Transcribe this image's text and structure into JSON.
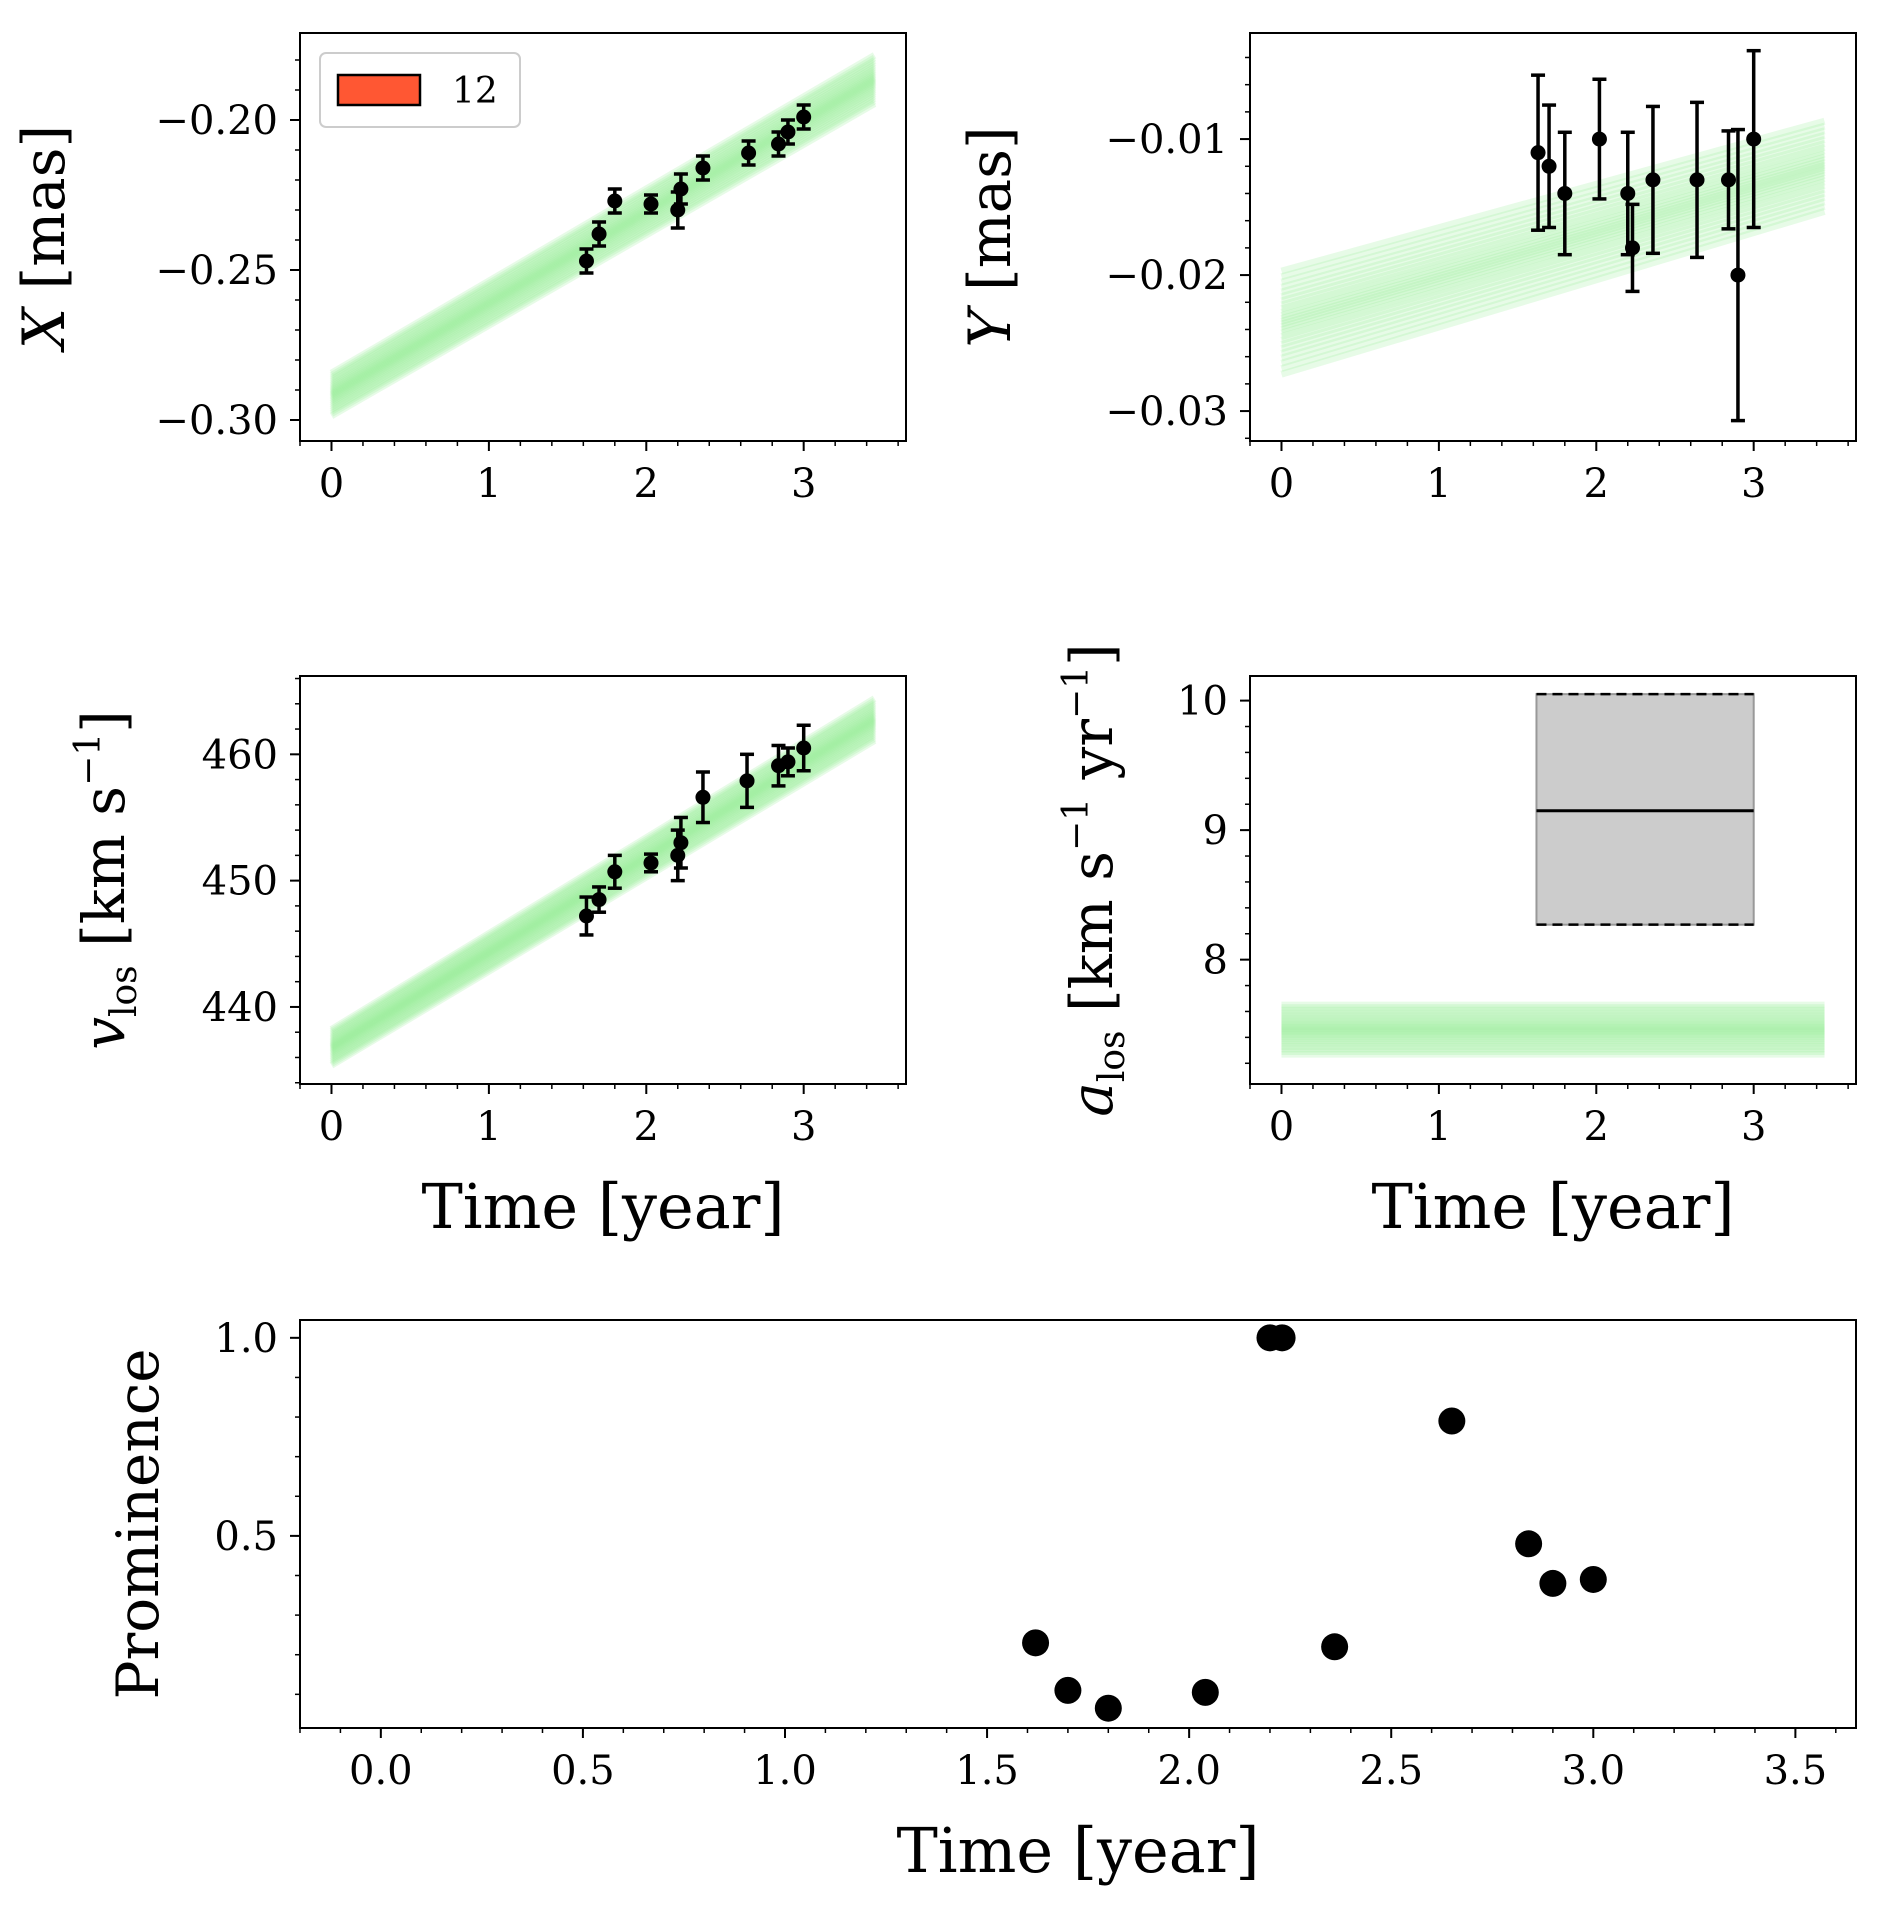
{
  "legend": {
    "label": "12",
    "color": "#ff5733"
  },
  "colors": {
    "model": "#90ee90",
    "data": "#000000",
    "box_fill": "#cccccc"
  },
  "chart_data": [
    {
      "id": "X",
      "type": "line",
      "ylabel_parts": [
        "X",
        " [mas]"
      ],
      "xlim": [
        -0.2,
        3.65
      ],
      "ylim": [
        -0.307,
        -0.171
      ],
      "xticks": [
        "0",
        "1",
        "2",
        "3"
      ],
      "xtick_values": [
        0,
        1,
        2,
        3
      ],
      "yticks": [
        "−0.30",
        "−0.25",
        "−0.20"
      ],
      "ytick_values": [
        -0.3,
        -0.25,
        -0.2
      ],
      "model_band": {
        "x_range": [
          0,
          3.45
        ],
        "y_start": [
          -0.299,
          -0.284
        ],
        "y_end": [
          -0.195,
          -0.178
        ]
      },
      "points": [
        {
          "x": 1.62,
          "y": -0.247,
          "err": 0.004
        },
        {
          "x": 1.7,
          "y": -0.238,
          "err": 0.004
        },
        {
          "x": 1.8,
          "y": -0.227,
          "err": 0.004
        },
        {
          "x": 2.03,
          "y": -0.228,
          "err": 0.003
        },
        {
          "x": 2.2,
          "y": -0.23,
          "err": 0.006
        },
        {
          "x": 2.22,
          "y": -0.223,
          "err": 0.005
        },
        {
          "x": 2.36,
          "y": -0.216,
          "err": 0.004
        },
        {
          "x": 2.65,
          "y": -0.211,
          "err": 0.004
        },
        {
          "x": 2.84,
          "y": -0.208,
          "err": 0.004
        },
        {
          "x": 2.9,
          "y": -0.204,
          "err": 0.004
        },
        {
          "x": 3.0,
          "y": -0.199,
          "err": 0.004
        }
      ]
    },
    {
      "id": "Y",
      "type": "line",
      "ylabel_parts": [
        "Y",
        " [mas]"
      ],
      "xlim": [
        -0.2,
        3.65
      ],
      "ylim": [
        -0.0322,
        -0.0022
      ],
      "xticks": [
        "0",
        "1",
        "2",
        "3"
      ],
      "xtick_values": [
        0,
        1,
        2,
        3
      ],
      "yticks": [
        "−0.03",
        "−0.02",
        "−0.01"
      ],
      "ytick_values": [
        -0.03,
        -0.02,
        -0.01
      ],
      "model_band": {
        "x_range": [
          0,
          3.45
        ],
        "y_start": [
          -0.0275,
          -0.0195
        ],
        "y_end": [
          -0.0155,
          -0.0085
        ]
      },
      "points": [
        {
          "x": 1.63,
          "y": -0.011,
          "err": 0.0057
        },
        {
          "x": 1.7,
          "y": -0.012,
          "err": 0.0045
        },
        {
          "x": 1.8,
          "y": -0.014,
          "err": 0.0045
        },
        {
          "x": 2.02,
          "y": -0.01,
          "err": 0.0044
        },
        {
          "x": 2.2,
          "y": -0.014,
          "err": 0.0045
        },
        {
          "x": 2.23,
          "y": -0.018,
          "err": 0.0032
        },
        {
          "x": 2.36,
          "y": -0.013,
          "err": 0.0054
        },
        {
          "x": 2.64,
          "y": -0.013,
          "err": 0.0057
        },
        {
          "x": 2.84,
          "y": -0.013,
          "err": 0.0036
        },
        {
          "x": 2.9,
          "y": -0.02,
          "err": 0.0107
        },
        {
          "x": 3.0,
          "y": -0.01,
          "err": 0.0065
        }
      ]
    },
    {
      "id": "vlos",
      "type": "line",
      "ylabel_parts": [
        "v",
        "los",
        " [km s",
        "−1",
        "]"
      ],
      "xlim": [
        -0.2,
        3.65
      ],
      "ylim": [
        433.9,
        466.2
      ],
      "xticks": [
        "0",
        "1",
        "2",
        "3"
      ],
      "xtick_values": [
        0,
        1,
        2,
        3
      ],
      "yticks": [
        "440",
        "450",
        "460"
      ],
      "ytick_values": [
        440,
        450,
        460
      ],
      "model_band": {
        "x_range": [
          0,
          3.45
        ],
        "y_start": [
          435.3,
          438.3
        ],
        "y_end": [
          461.0,
          464.5
        ]
      },
      "points": [
        {
          "x": 1.62,
          "y": 447.2,
          "err": 1.5
        },
        {
          "x": 1.7,
          "y": 448.5,
          "err": 1.0
        },
        {
          "x": 1.8,
          "y": 450.7,
          "err": 1.3
        },
        {
          "x": 2.03,
          "y": 451.4,
          "err": 0.7
        },
        {
          "x": 2.2,
          "y": 452.0,
          "err": 2.0
        },
        {
          "x": 2.22,
          "y": 453.0,
          "err": 2.0
        },
        {
          "x": 2.36,
          "y": 456.6,
          "err": 2.0
        },
        {
          "x": 2.64,
          "y": 457.9,
          "err": 2.1
        },
        {
          "x": 2.84,
          "y": 459.1,
          "err": 1.6
        },
        {
          "x": 2.9,
          "y": 459.4,
          "err": 1.1
        },
        {
          "x": 3.0,
          "y": 460.5,
          "err": 1.8
        }
      ]
    },
    {
      "id": "alos",
      "type": "line",
      "ylabel_parts": [
        "a",
        "los",
        " [km s",
        "−1",
        " yr",
        "−1",
        "]"
      ],
      "xlabel": "Time [year]",
      "xlim": [
        -0.2,
        3.65
      ],
      "ylim": [
        7.04,
        10.19
      ],
      "xticks": [
        "0",
        "1",
        "2",
        "3"
      ],
      "xtick_values": [
        0,
        1,
        2,
        3
      ],
      "yticks": [
        "8",
        "9",
        "10"
      ],
      "ytick_values": [
        8,
        9,
        10
      ],
      "model_band": {
        "x_range": [
          0,
          3.45
        ],
        "y_start": [
          7.26,
          7.66
        ],
        "y_end": [
          7.26,
          7.66
        ]
      },
      "box": {
        "x": [
          1.62,
          3.0
        ],
        "y": [
          8.27,
          10.05
        ],
        "median": 9.15
      }
    },
    {
      "id": "prominence",
      "type": "scatter",
      "ylabel_parts": [
        "Prominence"
      ],
      "xlabel": "Time [year]",
      "xlim": [
        -0.2,
        3.65
      ],
      "ylim": [
        0.015,
        1.045
      ],
      "xticks": [
        "0.0",
        "0.5",
        "1.0",
        "1.5",
        "2.0",
        "2.5",
        "3.0",
        "3.5"
      ],
      "xtick_values": [
        0.0,
        0.5,
        1.0,
        1.5,
        2.0,
        2.5,
        3.0,
        3.5
      ],
      "yticks": [
        "0.5",
        "1.0"
      ],
      "ytick_values": [
        0.5,
        1.0
      ],
      "points": [
        {
          "x": 1.62,
          "y": 0.23
        },
        {
          "x": 1.7,
          "y": 0.11
        },
        {
          "x": 1.8,
          "y": 0.065
        },
        {
          "x": 2.04,
          "y": 0.105
        },
        {
          "x": 2.2,
          "y": 1.0
        },
        {
          "x": 2.23,
          "y": 1.0
        },
        {
          "x": 2.36,
          "y": 0.22
        },
        {
          "x": 2.65,
          "y": 0.79
        },
        {
          "x": 2.84,
          "y": 0.48
        },
        {
          "x": 2.9,
          "y": 0.38
        },
        {
          "x": 3.0,
          "y": 0.39
        }
      ]
    }
  ]
}
